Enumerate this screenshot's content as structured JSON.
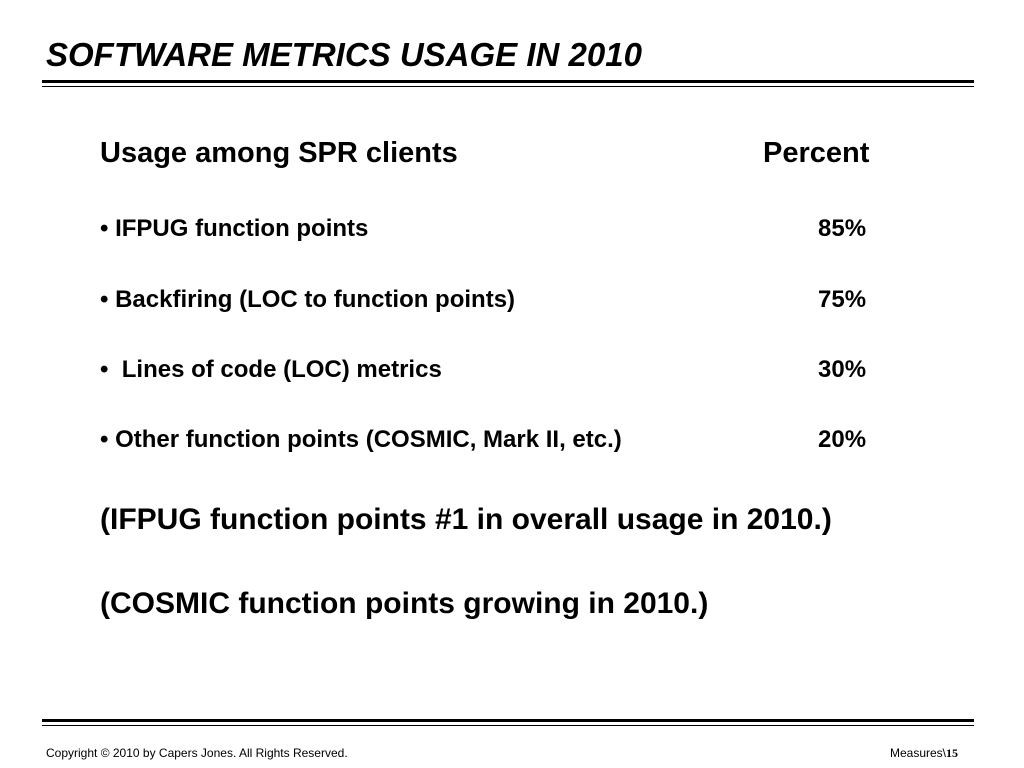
{
  "title": "SOFTWARE METRICS USAGE IN 2010",
  "table": {
    "header_label": "Usage among SPR clients",
    "header_value": "Percent",
    "rows": [
      {
        "bullet": "•",
        "label": "IFPUG function points",
        "value": "85%"
      },
      {
        "bullet": "•",
        "label": "Backfiring (LOC to function points)",
        "value": "75%"
      },
      {
        "bullet": "•",
        "label": " Lines of code (LOC) metrics",
        "value": "30%"
      },
      {
        "bullet": "•",
        "label": "Other function points (COSMIC, Mark II, etc.)",
        "value": "20%"
      }
    ]
  },
  "notes": [
    "(IFPUG function points #1 in overall usage in 2010.)",
    "(COSMIC function points growing in 2010.)"
  ],
  "footer": {
    "copyright": "Copyright © 2010  by Capers Jones.  All Rights Reserved.",
    "section": "Measures\\",
    "page": "15"
  }
}
